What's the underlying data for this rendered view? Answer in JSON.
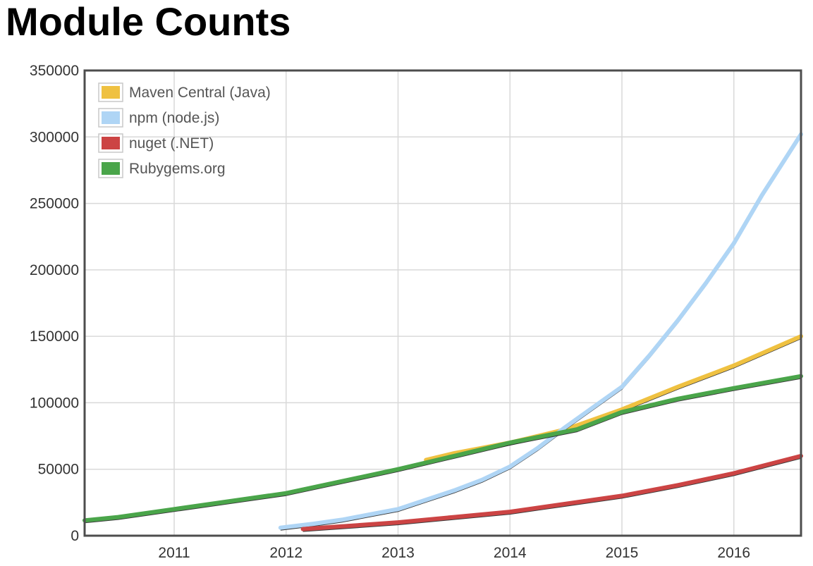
{
  "page": {
    "title": "Module Counts"
  },
  "chart_data": {
    "type": "line",
    "title": "Module Counts",
    "xlabel": "",
    "ylabel": "",
    "xlim": [
      2010.2,
      2016.6
    ],
    "ylim": [
      0,
      350000
    ],
    "x_ticks": [
      "2011",
      "2012",
      "2013",
      "2014",
      "2015",
      "2016"
    ],
    "y_ticks": [
      "0",
      "50000",
      "100000",
      "150000",
      "200000",
      "250000",
      "300000",
      "350000"
    ],
    "grid": true,
    "legend_position": "top-left",
    "series": [
      {
        "name": "Maven Central (Java)",
        "color": "#efc141",
        "x": [
          2013.25,
          2013.5,
          2014.0,
          2014.5,
          2015.0,
          2015.5,
          2016.0,
          2016.6
        ],
        "y": [
          57000,
          62000,
          70000,
          80000,
          95000,
          112000,
          128000,
          150000
        ]
      },
      {
        "name": "npm (node.js)",
        "color": "#afd5f5",
        "x": [
          2011.95,
          2012.25,
          2012.5,
          2012.75,
          2013.0,
          2013.25,
          2013.5,
          2013.75,
          2014.0,
          2014.25,
          2014.5,
          2014.75,
          2015.0,
          2015.25,
          2015.5,
          2015.75,
          2016.0,
          2016.25,
          2016.6
        ],
        "y": [
          6000,
          9000,
          12000,
          16000,
          20000,
          27000,
          34000,
          42000,
          52000,
          66000,
          82000,
          97000,
          112000,
          136000,
          162000,
          190000,
          220000,
          256000,
          302000
        ]
      },
      {
        "name": "nuget (.NET)",
        "color": "#cc4444",
        "x": [
          2012.15,
          2012.5,
          2013.0,
          2013.5,
          2014.0,
          2014.5,
          2015.0,
          2015.5,
          2016.0,
          2016.6
        ],
        "y": [
          5000,
          7000,
          10000,
          14000,
          18000,
          24000,
          30000,
          38000,
          47000,
          60000
        ]
      },
      {
        "name": "Rubygems.org",
        "color": "#4aa54a",
        "x": [
          2010.2,
          2010.5,
          2011.0,
          2011.5,
          2012.0,
          2012.5,
          2013.0,
          2013.5,
          2014.0,
          2014.6,
          2015.0,
          2015.5,
          2016.0,
          2016.6
        ],
        "y": [
          11500,
          14000,
          20000,
          26000,
          32000,
          41000,
          50000,
          60000,
          70000,
          80000,
          93000,
          103000,
          111000,
          120000
        ]
      }
    ]
  }
}
